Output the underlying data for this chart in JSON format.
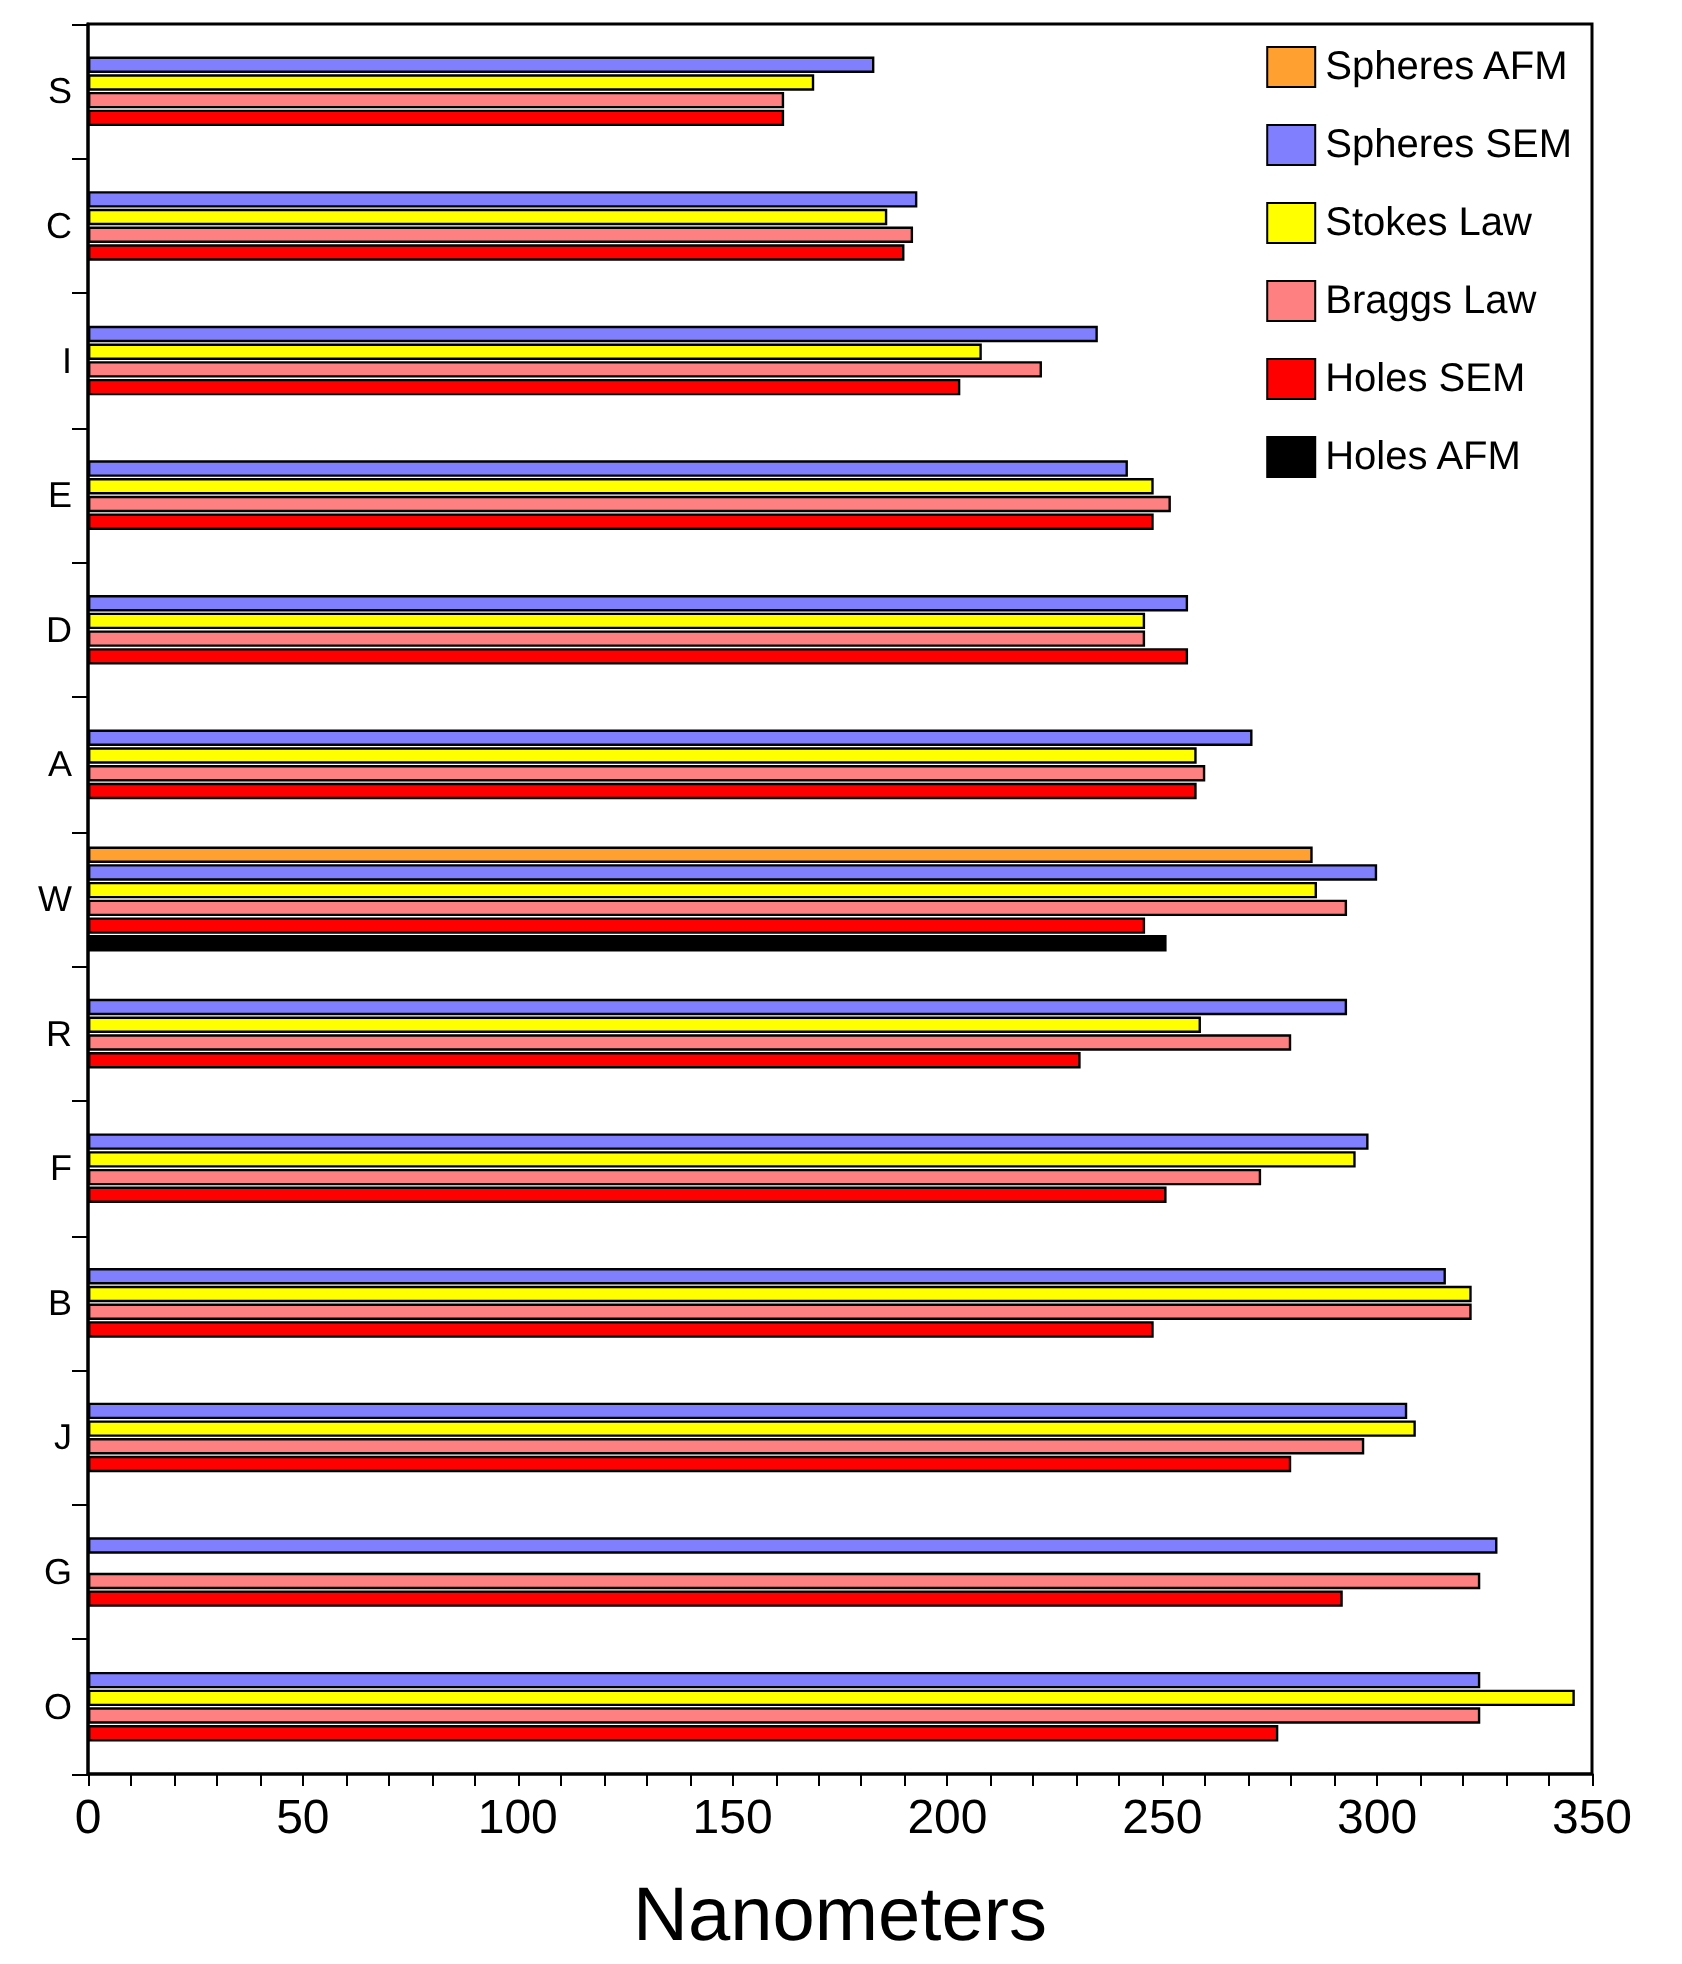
{
  "chart_data": {
    "type": "bar",
    "orientation": "horizontal",
    "xlabel": "Nanometers",
    "categories": [
      "S",
      "C",
      "I",
      "E",
      "D",
      "A",
      "W",
      "R",
      "F",
      "B",
      "J",
      "G",
      "O"
    ],
    "series": [
      {
        "name": "Spheres AFM",
        "color": "#ffa030",
        "values": [
          null,
          null,
          null,
          null,
          null,
          null,
          285,
          null,
          null,
          null,
          null,
          null,
          null
        ]
      },
      {
        "name": "Spheres SEM",
        "color": "#8080ff",
        "values": [
          183,
          193,
          235,
          242,
          256,
          271,
          300,
          293,
          298,
          316,
          307,
          328,
          324
        ]
      },
      {
        "name": "Stokes Law",
        "color": "#ffff00",
        "values": [
          169,
          186,
          208,
          248,
          246,
          258,
          286,
          259,
          295,
          322,
          309,
          null,
          346
        ]
      },
      {
        "name": "Braggs Law",
        "color": "#ff8080",
        "values": [
          162,
          192,
          222,
          252,
          246,
          260,
          293,
          280,
          273,
          322,
          297,
          324,
          324
        ]
      },
      {
        "name": "Holes SEM",
        "color": "#ff0000",
        "values": [
          162,
          190,
          203,
          248,
          256,
          258,
          246,
          231,
          251,
          248,
          280,
          292,
          277
        ]
      },
      {
        "name": "Holes AFM",
        "color": "#000000",
        "values": [
          null,
          null,
          null,
          null,
          null,
          null,
          251,
          null,
          null,
          null,
          null,
          null,
          null
        ]
      }
    ],
    "xlim": [
      0,
      350
    ],
    "xticks": [
      0,
      {
        "value": 10,
        "label": null
      },
      {
        "value": 20,
        "label": null
      },
      {
        "value": 30,
        "label": null
      },
      {
        "value": 40,
        "label": null
      },
      50,
      {
        "value": 60,
        "label": null
      },
      {
        "value": 70,
        "label": null
      },
      {
        "value": 80,
        "label": null
      },
      {
        "value": 90,
        "label": null
      },
      100,
      {
        "value": 110,
        "label": null
      },
      {
        "value": 120,
        "label": null
      },
      {
        "value": 130,
        "label": null
      },
      {
        "value": 140,
        "label": null
      },
      150,
      {
        "value": 160,
        "label": null
      },
      {
        "value": 170,
        "label": null
      },
      {
        "value": 180,
        "label": null
      },
      {
        "value": 190,
        "label": null
      },
      200,
      {
        "value": 210,
        "label": null
      },
      {
        "value": 220,
        "label": null
      },
      {
        "value": 230,
        "label": null
      },
      {
        "value": 240,
        "label": null
      },
      250,
      {
        "value": 260,
        "label": null
      },
      {
        "value": 270,
        "label": null
      },
      {
        "value": 280,
        "label": null
      },
      {
        "value": 290,
        "label": null
      },
      300,
      {
        "value": 310,
        "label": null
      },
      {
        "value": 320,
        "label": null
      },
      {
        "value": 330,
        "label": null
      },
      {
        "value": 340,
        "label": null
      },
      350
    ],
    "grid": false,
    "legend": "top right"
  }
}
